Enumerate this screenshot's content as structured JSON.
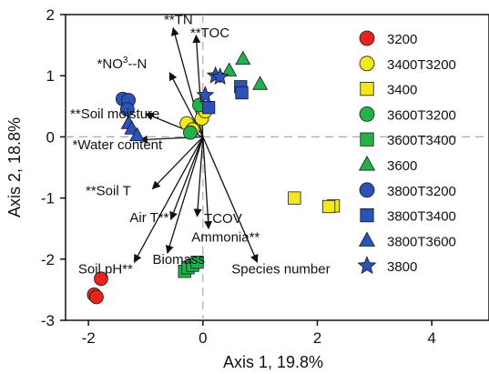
{
  "chart_data": {
    "type": "scatter",
    "xlabel": "Axis 1, 19.8%",
    "ylabel": "Axis 2, 18.8%",
    "xlim": [
      -2.4,
      5.0
    ],
    "ylim": [
      -3.0,
      2.0
    ],
    "xticks": [
      -2,
      0,
      2,
      4
    ],
    "yticks": [
      -3,
      -2,
      -1,
      0,
      1,
      2
    ],
    "xtick_labels": [
      "-2",
      "0",
      "2",
      "4"
    ],
    "ytick_labels": [
      "-3",
      "-2",
      "-1",
      "0",
      "1",
      "2"
    ],
    "zero_lines": true,
    "legend_position": "right",
    "series": [
      {
        "name": "3200",
        "marker": "circle",
        "color": "#e8231e",
        "points": [
          [
            -1.78,
            -2.32
          ],
          [
            -1.9,
            -2.58
          ],
          [
            -1.86,
            -2.62
          ]
        ]
      },
      {
        "name": "3400T3200",
        "marker": "circle",
        "color": "#f2e81a",
        "points": [
          [
            -0.28,
            0.22
          ],
          [
            -0.18,
            0.12
          ],
          [
            -0.02,
            0.3
          ],
          [
            0.04,
            0.42
          ]
        ]
      },
      {
        "name": "3400",
        "marker": "square",
        "color": "#f2e81a",
        "points": [
          [
            1.6,
            -1.0
          ],
          [
            2.28,
            -1.13
          ],
          [
            2.2,
            -1.14
          ]
        ]
      },
      {
        "name": "3600T3200",
        "marker": "circle",
        "color": "#22b14c",
        "points": [
          [
            -0.22,
            0.07
          ],
          [
            -0.06,
            0.52
          ]
        ]
      },
      {
        "name": "3600T3400",
        "marker": "square",
        "color": "#22b14c",
        "points": [
          [
            -0.32,
            -2.2
          ],
          [
            -0.26,
            -2.14
          ],
          [
            -0.18,
            -2.1
          ],
          [
            -0.1,
            -2.05
          ]
        ]
      },
      {
        "name": "3600",
        "marker": "triangle",
        "color": "#22b14c",
        "points": [
          [
            0.46,
            1.08
          ],
          [
            0.7,
            1.27
          ],
          [
            1.0,
            0.86
          ]
        ]
      },
      {
        "name": "3800T3200",
        "marker": "circle",
        "color": "#2b52b8",
        "points": [
          [
            -1.4,
            0.62
          ],
          [
            -1.3,
            0.6
          ],
          [
            -1.32,
            0.45
          ]
        ]
      },
      {
        "name": "3800T3400",
        "marker": "square",
        "color": "#2b52b8",
        "points": [
          [
            0.1,
            0.48
          ],
          [
            0.66,
            0.82
          ],
          [
            0.68,
            0.72
          ]
        ]
      },
      {
        "name": "3800T3600",
        "marker": "triangle",
        "color": "#2b52b8",
        "points": [
          [
            -1.3,
            0.22
          ],
          [
            -1.24,
            0.13
          ],
          [
            -1.15,
            0.02
          ]
        ]
      },
      {
        "name": "3800",
        "marker": "star",
        "color": "#2b52b8",
        "points": [
          [
            0.22,
            1.0
          ],
          [
            0.3,
            0.98
          ],
          [
            0.04,
            0.68
          ]
        ]
      }
    ],
    "vectors": [
      {
        "label": "**TN",
        "x": -0.52,
        "y": 1.78,
        "lx": -0.68,
        "ly": 1.92,
        "anchor": "start"
      },
      {
        "label": "**TOC",
        "x": -0.12,
        "y": 1.66,
        "lx": -0.22,
        "ly": 1.7,
        "anchor": "start"
      },
      {
        "label": "*NO3-N",
        "html_label": "*NO<tspan font-size='10' dy='-6'>3</tspan><tspan dy='6'>-</tspan>-N",
        "x": -0.58,
        "y": 1.05,
        "lx": -1.85,
        "ly": 1.2,
        "anchor": "start"
      },
      {
        "label": "**Soil moisture",
        "x": -1.0,
        "y": 0.38,
        "lx": -2.32,
        "ly": 0.38,
        "anchor": "start"
      },
      {
        "label": "*Water content",
        "x": -1.1,
        "y": -0.05,
        "lx": -2.28,
        "ly": -0.13,
        "anchor": "start"
      },
      {
        "label": "**Soil T",
        "x": -0.88,
        "y": -0.85,
        "lx": -2.05,
        "ly": -0.88,
        "anchor": "start"
      },
      {
        "label": "Air T**",
        "x": -0.56,
        "y": -1.35,
        "lx": -1.28,
        "ly": -1.32,
        "anchor": "start"
      },
      {
        "label": "TCOV",
        "x": -0.1,
        "y": -1.3,
        "lx": 0.02,
        "ly": -1.33,
        "anchor": "start"
      },
      {
        "label": "Ammonia**",
        "x": 0.1,
        "y": -1.5,
        "lx": -0.2,
        "ly": -1.64,
        "anchor": "start"
      },
      {
        "label": "Soil pH**",
        "x": -1.2,
        "y": -2.05,
        "lx": -2.18,
        "ly": -2.16,
        "anchor": "start"
      },
      {
        "label": "Biomass",
        "x": -0.62,
        "y": -1.9,
        "lx": -0.88,
        "ly": -2.0,
        "anchor": "start"
      },
      {
        "label": "Species number",
        "x": 0.95,
        "y": -2.05,
        "lx": 0.5,
        "ly": -2.16,
        "anchor": "start"
      }
    ]
  }
}
